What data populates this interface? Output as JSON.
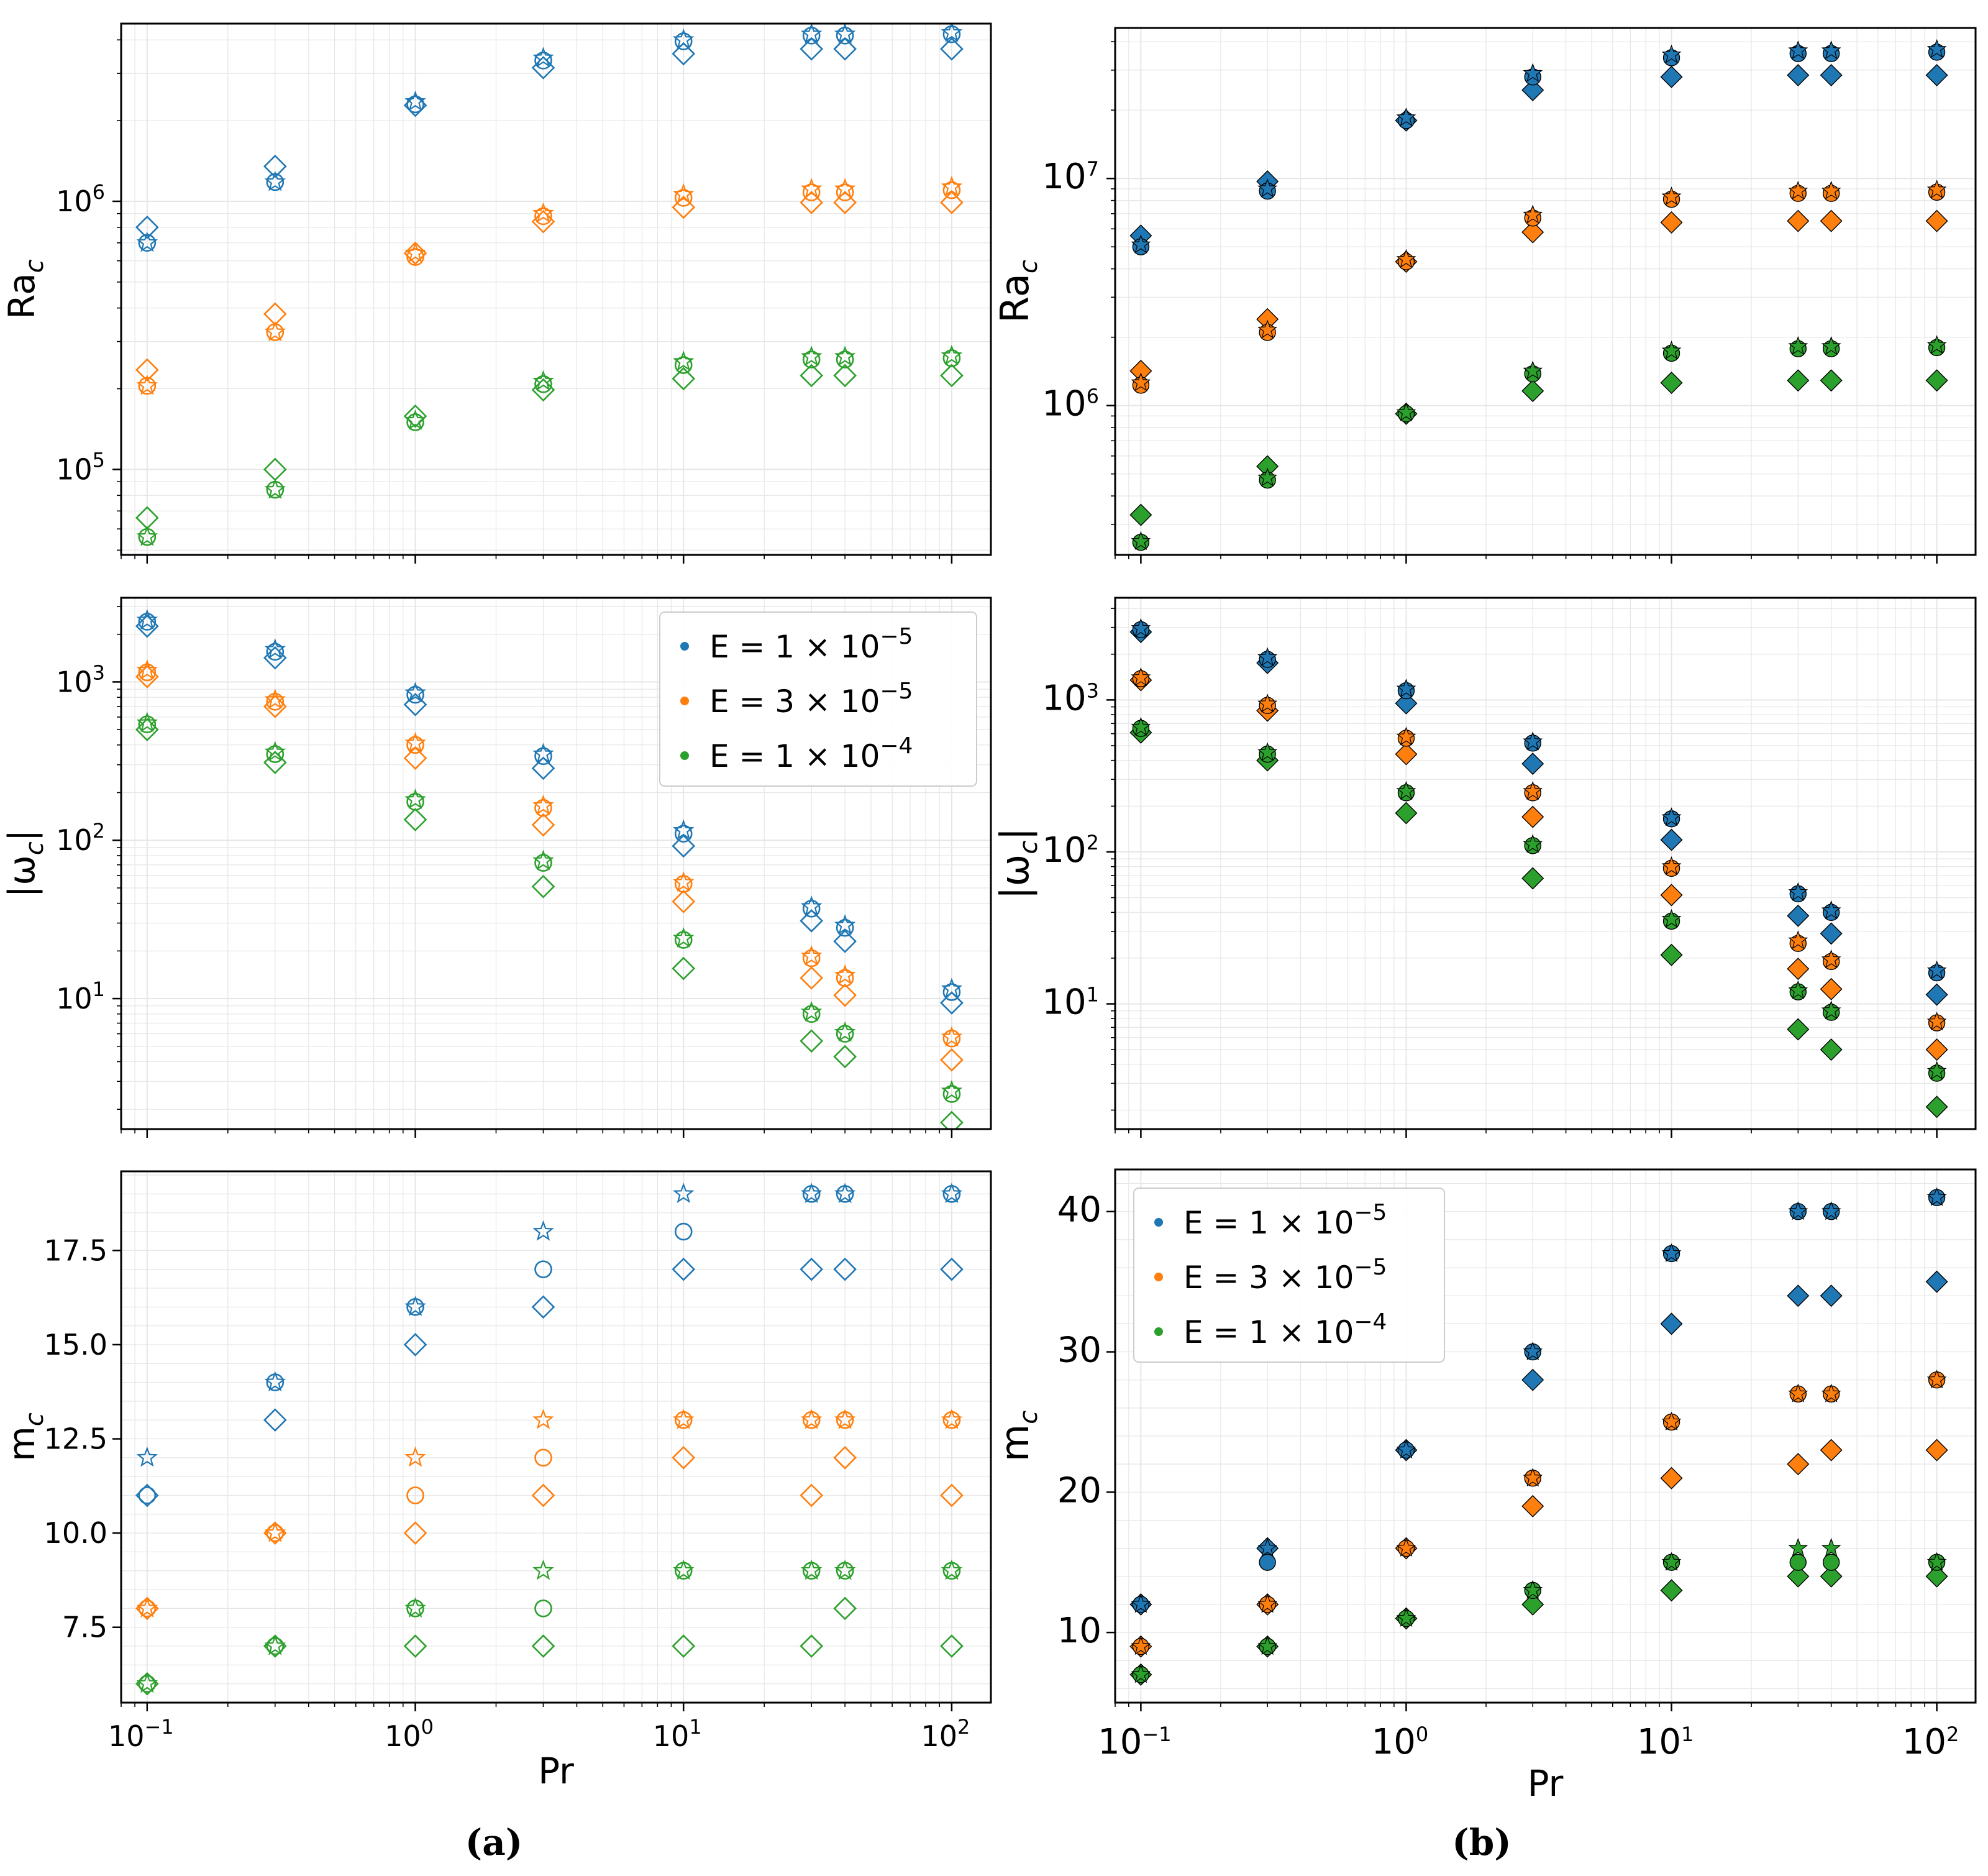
{
  "colors": {
    "E1": "#1f77b4",
    "E2": "#ff7f0e",
    "E3": "#2ca02c"
  },
  "legend": [
    {
      "key": "E1",
      "label": "E = 1 × 10",
      "exp": "−5"
    },
    {
      "key": "E2",
      "label": "E = 3 × 10",
      "exp": "−5"
    },
    {
      "key": "E3",
      "label": "E = 1 × 10",
      "exp": "−4"
    }
  ],
  "captions": [
    "(a)",
    "(b)"
  ],
  "xlabel": "Pr",
  "chart_data": [
    {
      "id": "a-top",
      "type": "scatter",
      "scale": "log",
      "filled": false,
      "ylabel": "Ra",
      "ylabel_sub": "c",
      "xlim": [
        0.08,
        140
      ],
      "ylim": [
        48000,
        4600000
      ],
      "yticks": [
        {
          "v": 100000,
          "b": "10",
          "e": "5"
        },
        {
          "v": 1000000,
          "b": "10",
          "e": "6"
        }
      ],
      "pr": [
        0.1,
        0.3,
        1,
        3,
        10,
        30,
        40,
        100
      ],
      "series": [
        {
          "key": "E1",
          "circle": [
            700000,
            1180000,
            2300000,
            3350000,
            3950000,
            4150000,
            4150000,
            4200000
          ],
          "star": [
            700000,
            1180000,
            2350000,
            3420000,
            4000000,
            4200000,
            4200000,
            4250000
          ],
          "diamond": [
            800000,
            1350000,
            2280000,
            3150000,
            3550000,
            3700000,
            3700000,
            3700000
          ]
        },
        {
          "key": "E2",
          "circle": [
            205000,
            325000,
            620000,
            880000,
            1030000,
            1080000,
            1080000,
            1100000
          ],
          "star": [
            205000,
            325000,
            640000,
            900000,
            1060000,
            1110000,
            1110000,
            1130000
          ],
          "diamond": [
            235000,
            380000,
            640000,
            840000,
            950000,
            990000,
            990000,
            990000
          ]
        },
        {
          "key": "E3",
          "circle": [
            56000,
            84000,
            150000,
            208000,
            245000,
            257000,
            257000,
            260000
          ],
          "star": [
            56000,
            84000,
            152000,
            213000,
            252000,
            263000,
            263000,
            265000
          ],
          "diamond": [
            66000,
            100000,
            158000,
            198000,
            218000,
            224000,
            224000,
            224000
          ]
        }
      ]
    },
    {
      "id": "a-mid",
      "type": "scatter",
      "scale": "log",
      "filled": false,
      "ylabel": "|ω",
      "ylabel_sub": "c",
      "ylabel_tail": "|",
      "xlim": [
        0.08,
        140
      ],
      "ylim": [
        1.5,
        3400
      ],
      "yticks": [
        {
          "v": 10,
          "b": "10",
          "e": "1"
        },
        {
          "v": 100,
          "b": "10",
          "e": "2"
        },
        {
          "v": 1000,
          "b": "10",
          "e": "3"
        }
      ],
      "pr": [
        0.1,
        0.3,
        1,
        3,
        10,
        30,
        40,
        100
      ],
      "series": [
        {
          "key": "E1",
          "circle": [
            2400,
            1550,
            830,
            340,
            110,
            37,
            28,
            11
          ],
          "star": [
            2450,
            1600,
            850,
            350,
            115,
            38,
            29,
            11.5
          ],
          "diamond": [
            2250,
            1420,
            720,
            285,
            92,
            31,
            23,
            9.4
          ]
        },
        {
          "key": "E2",
          "circle": [
            1150,
            750,
            400,
            160,
            53,
            18,
            13.5,
            5.6
          ],
          "star": [
            1180,
            770,
            410,
            165,
            54,
            18.5,
            14,
            5.7
          ],
          "diamond": [
            1080,
            700,
            330,
            125,
            41,
            13.5,
            10.5,
            4.1
          ]
        },
        {
          "key": "E3",
          "circle": [
            540,
            350,
            175,
            72,
            23.5,
            8,
            6,
            2.5
          ],
          "star": [
            550,
            360,
            180,
            74,
            24,
            8.2,
            6.1,
            2.6
          ],
          "diamond": [
            500,
            310,
            135,
            51,
            15.5,
            5.4,
            4.3,
            1.65
          ]
        }
      ]
    },
    {
      "id": "a-bot",
      "type": "scatter",
      "scale": "linear",
      "filled": false,
      "ylabel": "m",
      "ylabel_sub": "c",
      "xlim": [
        0.08,
        140
      ],
      "ylim": [
        5.5,
        19.6
      ],
      "yticks": [
        {
          "v": 7.5,
          "t": "7.5"
        },
        {
          "v": 10,
          "t": "10.0"
        },
        {
          "v": 12.5,
          "t": "12.5"
        },
        {
          "v": 15,
          "t": "15.0"
        },
        {
          "v": 17.5,
          "t": "17.5"
        }
      ],
      "pr": [
        0.1,
        0.3,
        1,
        3,
        10,
        30,
        40,
        100
      ],
      "show_xticks": true,
      "series": [
        {
          "key": "E1",
          "circle": [
            11,
            14,
            16,
            17,
            18,
            19,
            19,
            19
          ],
          "star": [
            12,
            14,
            16,
            18,
            19,
            19,
            19,
            19
          ],
          "diamond": [
            11,
            13,
            15,
            16,
            17,
            17,
            17,
            17
          ]
        },
        {
          "key": "E2",
          "circle": [
            8,
            10,
            11,
            12,
            13,
            13,
            13,
            13
          ],
          "star": [
            8,
            10,
            12,
            13,
            13,
            13,
            13,
            13
          ],
          "diamond": [
            8,
            10,
            10,
            11,
            12,
            11,
            12,
            11
          ]
        },
        {
          "key": "E3",
          "circle": [
            6,
            7,
            8,
            8,
            9,
            9,
            9,
            9
          ],
          "star": [
            6,
            7,
            8,
            9,
            9,
            9,
            9,
            9
          ],
          "diamond": [
            6,
            7,
            7,
            7,
            7,
            7,
            8,
            7
          ]
        }
      ]
    },
    {
      "id": "b-top",
      "type": "scatter",
      "scale": "log",
      "filled": true,
      "ylabel": "Ra",
      "ylabel_sub": "c",
      "xlim": [
        0.08,
        140
      ],
      "ylim": [
        220000,
        46000000
      ],
      "yticks": [
        {
          "v": 1000000,
          "b": "10",
          "e": "6"
        },
        {
          "v": 10000000,
          "b": "10",
          "e": "7"
        }
      ],
      "pr": [
        0.1,
        0.3,
        1,
        3,
        10,
        30,
        40,
        100
      ],
      "series": [
        {
          "key": "E1",
          "circle": [
            5000000,
            8800000,
            18000000,
            28000000,
            34000000,
            35500000,
            35500000,
            36000000
          ],
          "star": [
            5100000,
            9000000,
            18500000,
            29000000,
            35000000,
            36500000,
            36500000,
            37000000
          ],
          "diamond": [
            5600000,
            9700000,
            18000000,
            24500000,
            28000000,
            28500000,
            28500000,
            28500000
          ]
        },
        {
          "key": "E2",
          "circle": [
            1230000,
            2100000,
            4300000,
            6700000,
            8100000,
            8600000,
            8600000,
            8700000
          ],
          "star": [
            1260000,
            2150000,
            4400000,
            6900000,
            8300000,
            8800000,
            8800000,
            8900000
          ],
          "diamond": [
            1420000,
            2400000,
            4300000,
            5800000,
            6400000,
            6500000,
            6500000,
            6500000
          ]
        },
        {
          "key": "E3",
          "circle": [
            250000,
            470000,
            920000,
            1380000,
            1700000,
            1780000,
            1780000,
            1800000
          ],
          "star": [
            252000,
            480000,
            930000,
            1420000,
            1740000,
            1820000,
            1820000,
            1840000
          ],
          "diamond": [
            330000,
            540000,
            920000,
            1160000,
            1260000,
            1290000,
            1290000,
            1290000
          ]
        }
      ]
    },
    {
      "id": "b-mid",
      "type": "scatter",
      "scale": "log",
      "filled": true,
      "ylabel": "|ω",
      "ylabel_sub": "c",
      "ylabel_tail": "|",
      "xlim": [
        0.08,
        140
      ],
      "ylim": [
        1.5,
        4700
      ],
      "yticks": [
        {
          "v": 10,
          "b": "10",
          "e": "1"
        },
        {
          "v": 100,
          "b": "10",
          "e": "2"
        },
        {
          "v": 1000,
          "b": "10",
          "e": "3"
        }
      ],
      "pr": [
        0.1,
        0.3,
        1,
        3,
        10,
        30,
        40,
        100
      ],
      "series": [
        {
          "key": "E1",
          "circle": [
            2900,
            1850,
            1150,
            520,
            165,
            53,
            40,
            16
          ],
          "star": [
            2950,
            1900,
            1180,
            530,
            168,
            54,
            41,
            16.5
          ],
          "diamond": [
            2800,
            1750,
            950,
            380,
            120,
            38,
            29,
            11.5
          ]
        },
        {
          "key": "E2",
          "circle": [
            1380,
            920,
            560,
            245,
            78,
            25,
            19,
            7.5
          ],
          "star": [
            1400,
            940,
            570,
            250,
            80,
            26,
            19.5,
            7.6
          ],
          "diamond": [
            1350,
            850,
            440,
            170,
            52,
            17,
            12.5,
            5
          ]
        },
        {
          "key": "E3",
          "circle": [
            650,
            440,
            245,
            110,
            35,
            12,
            8.8,
            3.5
          ],
          "star": [
            660,
            450,
            250,
            112,
            36,
            12.2,
            9,
            3.6
          ],
          "diamond": [
            610,
            400,
            180,
            67,
            21,
            6.8,
            5,
            2.1
          ]
        }
      ]
    },
    {
      "id": "b-bot",
      "type": "scatter",
      "scale": "linear",
      "filled": true,
      "ylabel": "m",
      "ylabel_sub": "c",
      "xlim": [
        0.08,
        140
      ],
      "ylim": [
        5,
        43
      ],
      "yticks": [
        {
          "v": 10,
          "t": "10"
        },
        {
          "v": 20,
          "t": "20"
        },
        {
          "v": 30,
          "t": "30"
        },
        {
          "v": 40,
          "t": "40"
        }
      ],
      "pr": [
        0.1,
        0.3,
        1,
        3,
        10,
        30,
        40,
        100
      ],
      "show_xticks": true,
      "series": [
        {
          "key": "E1",
          "circle": [
            12,
            15,
            23,
            30,
            37,
            40,
            40,
            41
          ],
          "star": [
            12,
            16,
            23,
            30,
            37,
            40,
            40,
            41
          ],
          "diamond": [
            12,
            16,
            23,
            28,
            32,
            34,
            34,
            35
          ]
        },
        {
          "key": "E2",
          "circle": [
            9,
            12,
            16,
            21,
            25,
            27,
            27,
            28
          ],
          "star": [
            9,
            12,
            16,
            21,
            25,
            27,
            27,
            28
          ],
          "diamond": [
            9,
            12,
            16,
            19,
            21,
            22,
            23,
            23
          ]
        },
        {
          "key": "E3",
          "circle": [
            7,
            9,
            11,
            13,
            15,
            15,
            15,
            15
          ],
          "star": [
            7,
            9,
            11,
            13,
            15,
            16,
            16,
            15
          ],
          "diamond": [
            7,
            9,
            11,
            12,
            13,
            14,
            14,
            14
          ]
        }
      ]
    }
  ]
}
